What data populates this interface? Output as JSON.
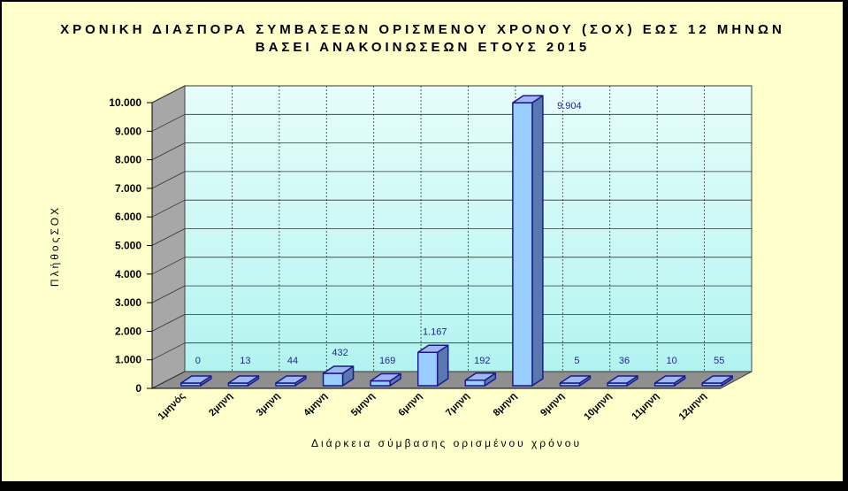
{
  "chart_data": {
    "type": "bar",
    "title": [
      "ΧΡΟΝΙΚΗ ΔΙΑΣΠΟΡΑ ΣΥΜΒΑΣΕΩΝ ΟΡΙΣΜΕΝΟΥ ΧΡΟΝΟΥ (ΣΟΧ) ΕΩΣ 12 ΜΗΝΩΝ",
      "ΒΑΣΕΙ ΑΝΑΚΟΙΝΩΣΕΩΝ ΕΤΟΥΣ 2015"
    ],
    "xlabel": "Διάρκεια σύμβασης ορισμένου χρόνου",
    "ylabel": "ΠλήθοςΣΟΧ",
    "categories": [
      "1μηνός",
      "2μηνη",
      "3μηνη",
      "4μηνη",
      "5μηνη",
      "6μηνη",
      "7μηνη",
      "8μηνη",
      "9μηνη",
      "10μηνη",
      "11μηνη",
      "12μηνη"
    ],
    "values": [
      0,
      13,
      44,
      432,
      169,
      1167,
      192,
      9904,
      5,
      36,
      10,
      55
    ],
    "value_labels": [
      "0",
      "13",
      "44",
      "432",
      "169",
      "1.167",
      "192",
      "9.904",
      "5",
      "36",
      "10",
      "55"
    ],
    "ylim": [
      0,
      10000
    ],
    "yticks": [
      0,
      1000,
      2000,
      3000,
      4000,
      5000,
      6000,
      7000,
      8000,
      9000,
      10000
    ],
    "ytick_labels": [
      "0",
      "1.000",
      "2.000",
      "3.000",
      "4.000",
      "5.000",
      "6.000",
      "7.000",
      "8.000",
      "9.000",
      "10.000"
    ],
    "grid": true,
    "colors": {
      "background": "#ffffcc",
      "bar_front": "#99ccff",
      "bar_top": "#9fb6ef",
      "bar_side": "#5a78b0",
      "bar_edge": "#1a1a8c",
      "wall_top": "#e6fdfb",
      "wall_bottom": "#b2f4f0",
      "side_wall": "#a7a7a7",
      "floor": "#8f8f8f",
      "label_color": "#1f2a8a"
    }
  }
}
